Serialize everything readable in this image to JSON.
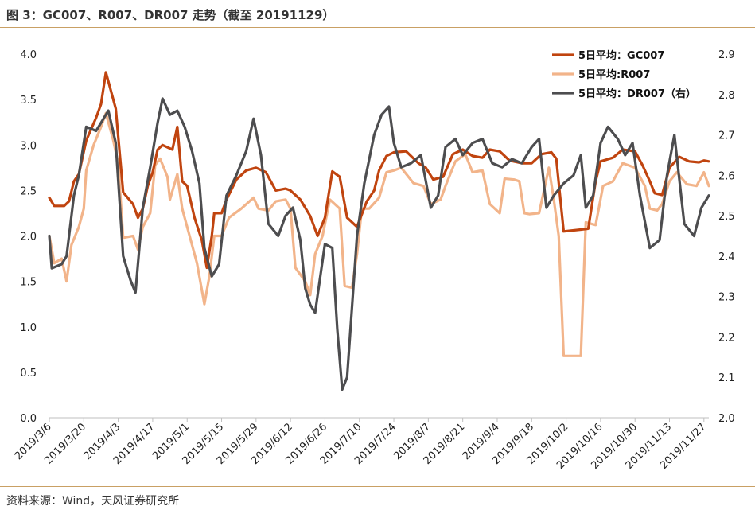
{
  "title": "图 3：GC007、R007、DR007 走势（截至 20191129）",
  "source": "资料来源：Wind，天风证券研究所",
  "chart_data": {
    "type": "line",
    "x_tick_labels": [
      "2019/3/6",
      "2019/3/20",
      "2019/4/3",
      "2019/4/17",
      "2019/5/1",
      "2019/5/15",
      "2019/5/29",
      "2019/6/12",
      "2019/6/26",
      "2019/7/10",
      "2019/7/24",
      "2019/8/7",
      "2019/8/21",
      "2019/9/4",
      "2019/9/18",
      "2019/10/2",
      "2019/10/16",
      "2019/10/30",
      "2019/11/13",
      "2019/11/27"
    ],
    "x_range": [
      "2019/3/6",
      "2019/11/29"
    ],
    "y_left": {
      "ticks": [
        "0.0",
        "0.5",
        "1.0",
        "1.5",
        "2.0",
        "2.5",
        "3.0",
        "3.5",
        "4.0"
      ],
      "ylim": [
        0,
        4
      ]
    },
    "y_right": {
      "ticks": [
        "2.0",
        "2.1",
        "2.2",
        "2.3",
        "2.4",
        "2.5",
        "2.6",
        "2.7",
        "2.8",
        "2.9"
      ],
      "ylim": [
        2.0,
        2.9
      ]
    },
    "legend_position": "top-right",
    "grid": false,
    "series": [
      {
        "name": "5日平均：GC007",
        "axis": "left",
        "color": "#c0440f",
        "points": [
          [
            "2019/3/6",
            2.42
          ],
          [
            "2019/3/8",
            2.33
          ],
          [
            "2019/3/12",
            2.33
          ],
          [
            "2019/3/14",
            2.38
          ],
          [
            "2019/3/16",
            2.6
          ],
          [
            "2019/3/18",
            2.68
          ],
          [
            "2019/3/21",
            3.05
          ],
          [
            "2019/3/25",
            3.3
          ],
          [
            "2019/3/27",
            3.45
          ],
          [
            "2019/3/29",
            3.8
          ],
          [
            "2019/3/31",
            3.6
          ],
          [
            "2019/4/2",
            3.4
          ],
          [
            "2019/4/5",
            2.48
          ],
          [
            "2019/4/9",
            2.35
          ],
          [
            "2019/4/11",
            2.2
          ],
          [
            "2019/4/13",
            2.3
          ],
          [
            "2019/4/15",
            2.55
          ],
          [
            "2019/4/17",
            2.7
          ],
          [
            "2019/4/19",
            2.95
          ],
          [
            "2019/4/21",
            3.0
          ],
          [
            "2019/4/25",
            2.95
          ],
          [
            "2019/4/27",
            3.2
          ],
          [
            "2019/4/29",
            2.6
          ],
          [
            "2019/5/1",
            2.55
          ],
          [
            "2019/5/4",
            2.2
          ],
          [
            "2019/5/7",
            1.95
          ],
          [
            "2019/5/9",
            1.65
          ],
          [
            "2019/5/11",
            2.0
          ],
          [
            "2019/5/12",
            2.25
          ],
          [
            "2019/5/15",
            2.25
          ],
          [
            "2019/5/17",
            2.4
          ],
          [
            "2019/5/21",
            2.62
          ],
          [
            "2019/5/25",
            2.72
          ],
          [
            "2019/5/29",
            2.75
          ],
          [
            "2019/6/2",
            2.7
          ],
          [
            "2019/6/6",
            2.5
          ],
          [
            "2019/6/10",
            2.52
          ],
          [
            "2019/6/12",
            2.5
          ],
          [
            "2019/6/16",
            2.4
          ],
          [
            "2019/6/20",
            2.22
          ],
          [
            "2019/6/23",
            2.0
          ],
          [
            "2019/6/26",
            2.2
          ],
          [
            "2019/6/29",
            2.71
          ],
          [
            "2019/7/2",
            2.65
          ],
          [
            "2019/7/5",
            2.2
          ],
          [
            "2019/7/9",
            2.1
          ],
          [
            "2019/7/13",
            2.38
          ],
          [
            "2019/7/16",
            2.5
          ],
          [
            "2019/7/18",
            2.72
          ],
          [
            "2019/7/21",
            2.88
          ],
          [
            "2019/7/24",
            2.92
          ],
          [
            "2019/7/29",
            2.93
          ],
          [
            "2019/8/3",
            2.8
          ],
          [
            "2019/8/6",
            2.75
          ],
          [
            "2019/8/9",
            2.62
          ],
          [
            "2019/8/13",
            2.65
          ],
          [
            "2019/8/17",
            2.9
          ],
          [
            "2019/8/21",
            2.95
          ],
          [
            "2019/8/25",
            2.88
          ],
          [
            "2019/8/29",
            2.86
          ],
          [
            "2019/9/1",
            2.95
          ],
          [
            "2019/9/5",
            2.93
          ],
          [
            "2019/9/9",
            2.83
          ],
          [
            "2019/9/14",
            2.8
          ],
          [
            "2019/9/18",
            2.8
          ],
          [
            "2019/9/22",
            2.9
          ],
          [
            "2019/9/26",
            2.92
          ],
          [
            "2019/9/28",
            2.85
          ],
          [
            "2019/10/1",
            2.05
          ],
          [
            "2019/10/8",
            2.07
          ],
          [
            "2019/10/11",
            2.08
          ],
          [
            "2019/10/14",
            2.6
          ],
          [
            "2019/10/16",
            2.82
          ],
          [
            "2019/10/21",
            2.86
          ],
          [
            "2019/10/25",
            2.95
          ],
          [
            "2019/10/30",
            2.93
          ],
          [
            "2019/11/2",
            2.78
          ],
          [
            "2019/11/5",
            2.6
          ],
          [
            "2019/11/7",
            2.47
          ],
          [
            "2019/11/10",
            2.45
          ],
          [
            "2019/11/13",
            2.75
          ],
          [
            "2019/11/17",
            2.87
          ],
          [
            "2019/11/21",
            2.82
          ],
          [
            "2019/11/25",
            2.81
          ],
          [
            "2019/11/27",
            2.83
          ],
          [
            "2019/11/29",
            2.82
          ]
        ]
      },
      {
        "name": "5日平均:R007",
        "axis": "left",
        "color": "#f2b48a",
        "points": [
          [
            "2019/3/6",
            2.0
          ],
          [
            "2019/3/8",
            1.7
          ],
          [
            "2019/3/11",
            1.75
          ],
          [
            "2019/3/13",
            1.5
          ],
          [
            "2019/3/15",
            1.9
          ],
          [
            "2019/3/18",
            2.1
          ],
          [
            "2019/3/20",
            2.3
          ],
          [
            "2019/3/21",
            2.72
          ],
          [
            "2019/3/24",
            3.0
          ],
          [
            "2019/3/27",
            3.2
          ],
          [
            "2019/3/29",
            3.35
          ],
          [
            "2019/4/1",
            3.05
          ],
          [
            "2019/4/3",
            2.8
          ],
          [
            "2019/4/5",
            1.98
          ],
          [
            "2019/4/9",
            2.0
          ],
          [
            "2019/4/11",
            1.85
          ],
          [
            "2019/4/13",
            2.1
          ],
          [
            "2019/4/16",
            2.25
          ],
          [
            "2019/4/18",
            2.78
          ],
          [
            "2019/4/20",
            2.85
          ],
          [
            "2019/4/23",
            2.65
          ],
          [
            "2019/4/24",
            2.4
          ],
          [
            "2019/4/27",
            2.68
          ],
          [
            "2019/4/29",
            2.3
          ],
          [
            "2019/5/2",
            2.0
          ],
          [
            "2019/5/5",
            1.7
          ],
          [
            "2019/5/8",
            1.25
          ],
          [
            "2019/5/10",
            1.55
          ],
          [
            "2019/5/12",
            2.0
          ],
          [
            "2019/5/15",
            2.0
          ],
          [
            "2019/5/18",
            2.2
          ],
          [
            "2019/5/23",
            2.3
          ],
          [
            "2019/5/28",
            2.42
          ],
          [
            "2019/5/30",
            2.3
          ],
          [
            "2019/6/3",
            2.28
          ],
          [
            "2019/6/6",
            2.38
          ],
          [
            "2019/6/10",
            2.4
          ],
          [
            "2019/6/12",
            2.3
          ],
          [
            "2019/6/14",
            1.65
          ],
          [
            "2019/6/18",
            1.5
          ],
          [
            "2019/6/20",
            1.35
          ],
          [
            "2019/6/22",
            1.8
          ],
          [
            "2019/6/25",
            2.0
          ],
          [
            "2019/6/28",
            2.4
          ],
          [
            "2019/7/2",
            2.3
          ],
          [
            "2019/7/4",
            1.45
          ],
          [
            "2019/7/7",
            1.43
          ],
          [
            "2019/7/9",
            1.8
          ],
          [
            "2019/7/11",
            2.3
          ],
          [
            "2019/7/14",
            2.3
          ],
          [
            "2019/7/18",
            2.42
          ],
          [
            "2019/7/21",
            2.7
          ],
          [
            "2019/7/24",
            2.72
          ],
          [
            "2019/7/27",
            2.75
          ],
          [
            "2019/8/1",
            2.58
          ],
          [
            "2019/8/5",
            2.55
          ],
          [
            "2019/8/8",
            2.35
          ],
          [
            "2019/8/12",
            2.4
          ],
          [
            "2019/8/14",
            2.55
          ],
          [
            "2019/8/18",
            2.82
          ],
          [
            "2019/8/22",
            2.9
          ],
          [
            "2019/8/25",
            2.7
          ],
          [
            "2019/8/29",
            2.72
          ],
          [
            "2019/9/1",
            2.35
          ],
          [
            "2019/9/5",
            2.25
          ],
          [
            "2019/9/7",
            2.63
          ],
          [
            "2019/9/11",
            2.62
          ],
          [
            "2019/9/13",
            2.6
          ],
          [
            "2019/9/15",
            2.25
          ],
          [
            "2019/9/17",
            2.24
          ],
          [
            "2019/9/21",
            2.25
          ],
          [
            "2019/9/25",
            2.75
          ],
          [
            "2019/9/27",
            2.4
          ],
          [
            "2019/9/29",
            2.0
          ],
          [
            "2019/10/1",
            0.68
          ],
          [
            "2019/10/8",
            0.68
          ],
          [
            "2019/10/10",
            2.15
          ],
          [
            "2019/10/14",
            2.12
          ],
          [
            "2019/10/17",
            2.55
          ],
          [
            "2019/10/21",
            2.6
          ],
          [
            "2019/10/25",
            2.8
          ],
          [
            "2019/10/30",
            2.75
          ],
          [
            "2019/11/3",
            2.55
          ],
          [
            "2019/11/5",
            2.3
          ],
          [
            "2019/11/8",
            2.28
          ],
          [
            "2019/11/10",
            2.35
          ],
          [
            "2019/11/13",
            2.6
          ],
          [
            "2019/11/16",
            2.7
          ],
          [
            "2019/11/20",
            2.57
          ],
          [
            "2019/11/24",
            2.55
          ],
          [
            "2019/11/27",
            2.7
          ],
          [
            "2019/11/29",
            2.55
          ]
        ]
      },
      {
        "name": "5日平均：DR007（右）",
        "axis": "right",
        "color": "#4d4d4f",
        "points": [
          [
            "2019/3/6",
            2.45
          ],
          [
            "2019/3/7",
            2.37
          ],
          [
            "2019/3/11",
            2.38
          ],
          [
            "2019/3/13",
            2.4
          ],
          [
            "2019/3/16",
            2.55
          ],
          [
            "2019/3/18",
            2.6
          ],
          [
            "2019/3/21",
            2.72
          ],
          [
            "2019/3/25",
            2.71
          ],
          [
            "2019/3/27",
            2.73
          ],
          [
            "2019/3/30",
            2.76
          ],
          [
            "2019/4/2",
            2.68
          ],
          [
            "2019/4/5",
            2.4
          ],
          [
            "2019/4/8",
            2.34
          ],
          [
            "2019/4/10",
            2.31
          ],
          [
            "2019/4/13",
            2.52
          ],
          [
            "2019/4/16",
            2.62
          ],
          [
            "2019/4/19",
            2.73
          ],
          [
            "2019/4/21",
            2.79
          ],
          [
            "2019/4/24",
            2.75
          ],
          [
            "2019/4/27",
            2.76
          ],
          [
            "2019/4/30",
            2.72
          ],
          [
            "2019/5/3",
            2.66
          ],
          [
            "2019/5/6",
            2.58
          ],
          [
            "2019/5/8",
            2.42
          ],
          [
            "2019/5/11",
            2.35
          ],
          [
            "2019/5/14",
            2.38
          ],
          [
            "2019/5/17",
            2.55
          ],
          [
            "2019/5/21",
            2.6
          ],
          [
            "2019/5/25",
            2.66
          ],
          [
            "2019/5/28",
            2.74
          ],
          [
            "2019/5/31",
            2.65
          ],
          [
            "2019/6/3",
            2.48
          ],
          [
            "2019/6/7",
            2.45
          ],
          [
            "2019/6/10",
            2.5
          ],
          [
            "2019/6/13",
            2.52
          ],
          [
            "2019/6/16",
            2.44
          ],
          [
            "2019/6/18",
            2.32
          ],
          [
            "2019/6/20",
            2.28
          ],
          [
            "2019/6/22",
            2.26
          ],
          [
            "2019/6/26",
            2.43
          ],
          [
            "2019/6/29",
            2.42
          ],
          [
            "2019/7/1",
            2.22
          ],
          [
            "2019/7/3",
            2.07
          ],
          [
            "2019/7/5",
            2.1
          ],
          [
            "2019/7/9",
            2.45
          ],
          [
            "2019/7/12",
            2.58
          ],
          [
            "2019/7/16",
            2.7
          ],
          [
            "2019/7/19",
            2.75
          ],
          [
            "2019/7/22",
            2.77
          ],
          [
            "2019/7/24",
            2.68
          ],
          [
            "2019/7/27",
            2.62
          ],
          [
            "2019/7/31",
            2.63
          ],
          [
            "2019/8/4",
            2.65
          ],
          [
            "2019/8/8",
            2.52
          ],
          [
            "2019/8/11",
            2.55
          ],
          [
            "2019/8/14",
            2.67
          ],
          [
            "2019/8/18",
            2.69
          ],
          [
            "2019/8/21",
            2.65
          ],
          [
            "2019/8/25",
            2.68
          ],
          [
            "2019/8/29",
            2.69
          ],
          [
            "2019/9/2",
            2.63
          ],
          [
            "2019/9/6",
            2.62
          ],
          [
            "2019/9/10",
            2.64
          ],
          [
            "2019/9/14",
            2.63
          ],
          [
            "2019/9/18",
            2.67
          ],
          [
            "2019/9/21",
            2.69
          ],
          [
            "2019/9/24",
            2.52
          ],
          [
            "2019/9/27",
            2.55
          ],
          [
            "2019/10/1",
            2.58
          ],
          [
            "2019/10/5",
            2.6
          ],
          [
            "2019/10/8",
            2.65
          ],
          [
            "2019/10/10",
            2.52
          ],
          [
            "2019/10/13",
            2.55
          ],
          [
            "2019/10/16",
            2.68
          ],
          [
            "2019/10/19",
            2.72
          ],
          [
            "2019/10/23",
            2.69
          ],
          [
            "2019/10/26",
            2.65
          ],
          [
            "2019/10/29",
            2.68
          ],
          [
            "2019/11/1",
            2.55
          ],
          [
            "2019/11/5",
            2.42
          ],
          [
            "2019/11/9",
            2.44
          ],
          [
            "2019/11/12",
            2.6
          ],
          [
            "2019/11/15",
            2.7
          ],
          [
            "2019/11/19",
            2.48
          ],
          [
            "2019/11/23",
            2.45
          ],
          [
            "2019/11/26",
            2.52
          ],
          [
            "2019/11/29",
            2.55
          ]
        ]
      }
    ]
  }
}
